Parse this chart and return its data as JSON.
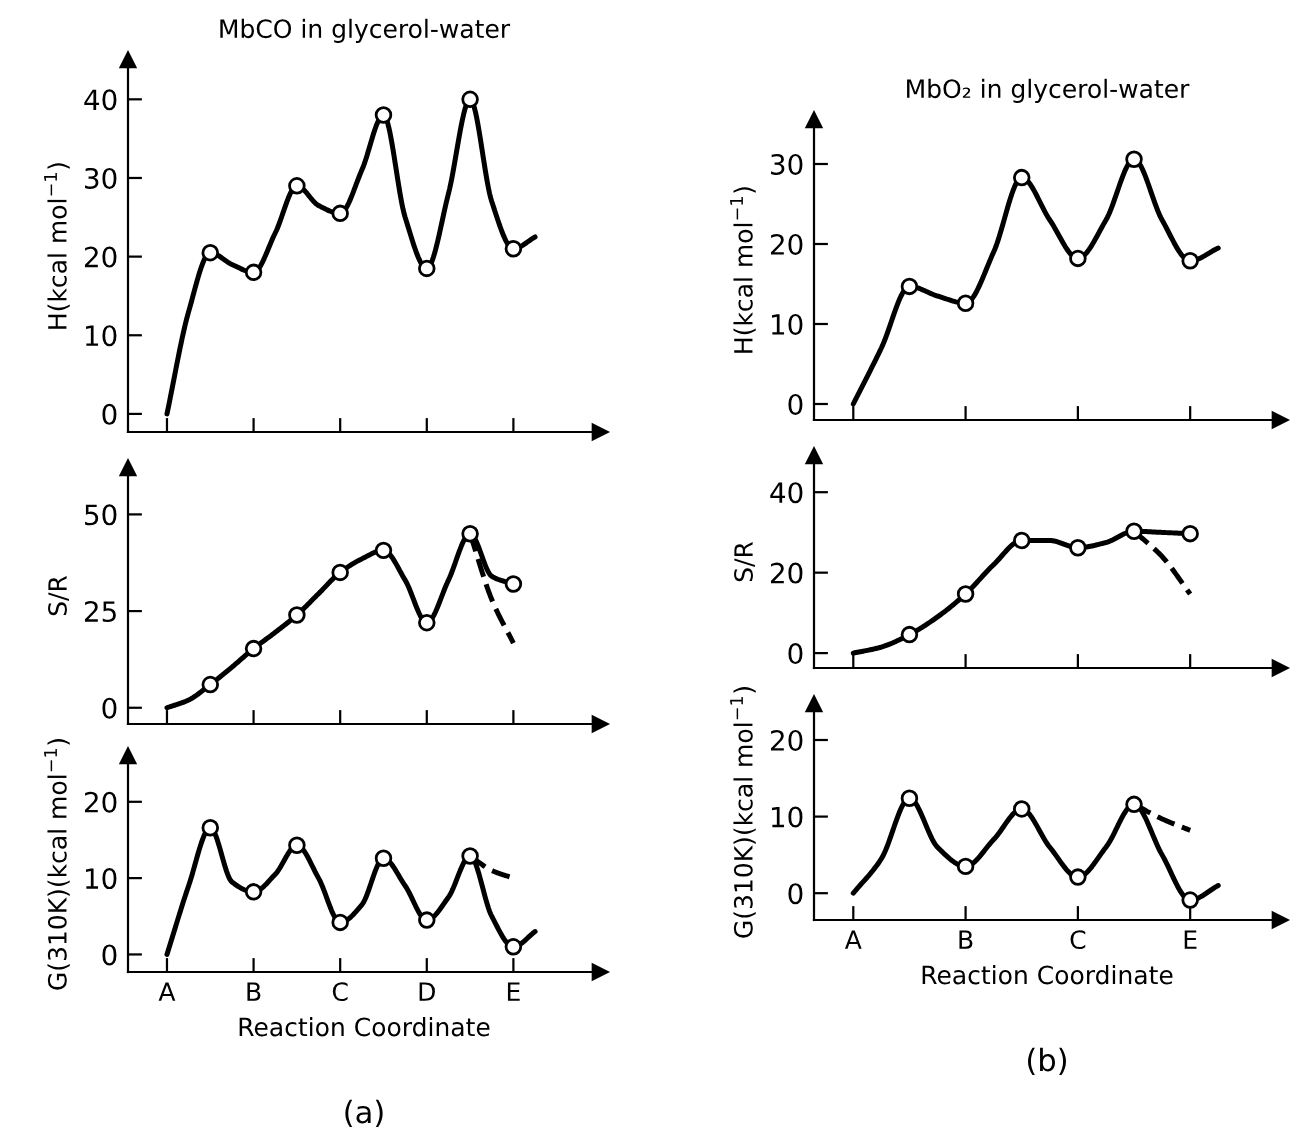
{
  "chart_data": [
    {
      "type": "line",
      "title": "MbCO in glycerol-water",
      "ylabel": "H(kcal mol$^{−1}$)",
      "categories": [
        null,
        null,
        null,
        null,
        null,
        null,
        null,
        null,
        null,
        null,
        null,
        null,
        null,
        null,
        null,
        null,
        null,
        null
      ],
      "ylim": [
        -2.3,
        45
      ],
      "yticks": [
        0,
        10,
        20,
        30,
        40
      ],
      "series": [
        {
          "color": "#000000",
          "line_style": "solid",
          "values": [
            0,
            13,
            20.5,
            19,
            18,
            23,
            29,
            26.5,
            25.5,
            31,
            38,
            25,
            18.5,
            28,
            40,
            27,
            21,
            22.5
          ]
        },
        {
          "type": "scatter",
          "color": "#000000",
          "marker": "circle",
          "values": [
            null,
            null,
            20.5,
            null,
            18,
            null,
            29,
            null,
            25.5,
            null,
            38,
            null,
            18.5,
            null,
            40,
            null,
            21,
            null
          ]
        }
      ]
    },
    {
      "type": "line",
      "ylabel": "S/R",
      "categories": [
        null,
        null,
        null,
        null,
        null,
        null,
        null,
        null,
        null,
        null,
        null,
        null,
        null,
        null,
        null,
        null,
        null,
        null
      ],
      "ylim": [
        -4.2,
        62
      ],
      "yticks": [
        0,
        25,
        50
      ],
      "series": [
        {
          "color": "#000000",
          "line_style": "solid",
          "values": [
            0,
            2,
            6,
            10.5,
            15.3,
            19.5,
            24,
            29.5,
            35,
            38.5,
            40.7,
            33,
            22,
            33,
            45,
            34,
            32,
            null
          ]
        },
        {
          "color": "#000000",
          "line_style": "dashed",
          "values": [
            null,
            null,
            null,
            null,
            null,
            null,
            null,
            null,
            null,
            null,
            null,
            null,
            null,
            null,
            45,
            28,
            16.7,
            null
          ]
        },
        {
          "type": "scatter",
          "color": "#000000",
          "marker": "circle",
          "values": [
            null,
            null,
            6,
            null,
            15.3,
            null,
            24,
            null,
            35,
            null,
            40.7,
            null,
            22,
            null,
            45,
            null,
            32,
            null
          ]
        }
      ]
    },
    {
      "type": "line",
      "ylabel": "G(310K)(kcal mol$^{−1}$)",
      "xlabel": "Reaction Coordinate",
      "annotations": [
        "(a)"
      ],
      "categories": [
        "A",
        null,
        null,
        null,
        "B",
        null,
        null,
        null,
        "C",
        null,
        null,
        null,
        "D",
        null,
        null,
        null,
        "E",
        null
      ],
      "ylim": [
        -2.3,
        26
      ],
      "yticks": [
        0,
        10,
        20
      ],
      "series": [
        {
          "color": "#000000",
          "line_style": "solid",
          "values": [
            0,
            9,
            16.6,
            9.5,
            8.2,
            10.5,
            14.3,
            10,
            4.2,
            6.5,
            12.6,
            9,
            4.5,
            7.5,
            12.9,
            5,
            1,
            3
          ]
        },
        {
          "color": "#000000",
          "line_style": "dashed",
          "values": [
            null,
            null,
            null,
            null,
            null,
            null,
            null,
            null,
            null,
            null,
            null,
            null,
            null,
            null,
            12.9,
            11,
            10,
            null
          ]
        },
        {
          "type": "scatter",
          "color": "#000000",
          "marker": "circle",
          "values": [
            null,
            null,
            16.6,
            null,
            8.2,
            null,
            14.3,
            null,
            4.2,
            null,
            12.6,
            null,
            4.5,
            null,
            12.9,
            null,
            1,
            null
          ]
        }
      ]
    },
    {
      "type": "line",
      "title": "MbO₂ in glycerol-water",
      "ylabel": "H(kcal mol$^{−1}$)",
      "categories": [
        null,
        null,
        null,
        null,
        null,
        null,
        null,
        null,
        null,
        null,
        null,
        null,
        null,
        null
      ],
      "ylim": [
        -2,
        35.5
      ],
      "yticks": [
        0,
        10,
        20,
        30
      ],
      "series": [
        {
          "color": "#000000",
          "line_style": "solid",
          "values": [
            0,
            7,
            14.7,
            13.5,
            12.6,
            19,
            28.3,
            23,
            18.2,
            23,
            30.6,
            23,
            17.9,
            19.5
          ]
        },
        {
          "type": "scatter",
          "color": "#000000",
          "marker": "circle",
          "values": [
            null,
            null,
            14.7,
            null,
            12.6,
            null,
            28.3,
            null,
            18.2,
            null,
            30.6,
            null,
            17.9,
            null
          ]
        }
      ]
    },
    {
      "type": "line",
      "ylabel": "S/R",
      "categories": [
        null,
        null,
        null,
        null,
        null,
        null,
        null,
        null,
        null,
        null,
        null,
        null,
        null,
        null
      ],
      "ylim": [
        -3.7,
        49
      ],
      "yticks": [
        0,
        20,
        40
      ],
      "series": [
        {
          "color": "#000000",
          "line_style": "solid",
          "values": [
            0,
            1.5,
            4.6,
            9,
            14.7,
            22,
            28,
            28,
            26.2,
            27.5,
            30.3,
            30,
            29.7,
            null
          ]
        },
        {
          "color": "#000000",
          "line_style": "dashed",
          "values": [
            null,
            null,
            null,
            null,
            null,
            null,
            null,
            null,
            null,
            null,
            30.3,
            24,
            14.7,
            null
          ]
        },
        {
          "type": "scatter",
          "color": "#000000",
          "marker": "circle",
          "values": [
            null,
            null,
            4.6,
            null,
            14.7,
            null,
            28,
            null,
            26.2,
            null,
            30.3,
            null,
            29.7,
            null
          ]
        }
      ]
    },
    {
      "type": "line",
      "ylabel": "G(310K)(kcal mol$^{−1}$)",
      "xlabel": "Reaction Coordinate",
      "annotations": [
        "(b)"
      ],
      "categories": [
        "A",
        null,
        null,
        null,
        "B",
        null,
        null,
        null,
        "C",
        null,
        null,
        null,
        "E",
        null
      ],
      "ylim": [
        -3.5,
        24.7
      ],
      "yticks": [
        0,
        10,
        20
      ],
      "series": [
        {
          "color": "#000000",
          "line_style": "solid",
          "values": [
            0,
            4.5,
            12.4,
            6,
            3.5,
            7,
            11,
            6,
            2.1,
            6,
            11.6,
            5,
            -0.9,
            1
          ]
        },
        {
          "color": "#000000",
          "line_style": "dashed",
          "values": [
            null,
            null,
            null,
            null,
            null,
            null,
            null,
            null,
            null,
            null,
            11.6,
            9.7,
            8.2,
            null
          ]
        },
        {
          "type": "scatter",
          "color": "#000000",
          "marker": "circle",
          "values": [
            null,
            null,
            12.4,
            null,
            3.5,
            null,
            11,
            null,
            2.1,
            null,
            11.6,
            null,
            -0.9,
            null
          ]
        }
      ]
    }
  ]
}
